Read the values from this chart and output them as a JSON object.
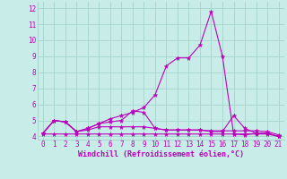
{
  "xlabel": "Windchill (Refroidissement éolien,°C)",
  "background_color": "#c8ede8",
  "grid_color": "#aad8d0",
  "line_color": "#bb00bb",
  "xlim": [
    -0.5,
    21.5
  ],
  "ylim": [
    3.8,
    12.4
  ],
  "yticks": [
    4,
    5,
    6,
    7,
    8,
    9,
    10,
    11,
    12
  ],
  "xticks": [
    0,
    1,
    2,
    3,
    4,
    5,
    6,
    7,
    8,
    9,
    10,
    11,
    12,
    13,
    14,
    15,
    16,
    17,
    18,
    19,
    20,
    21
  ],
  "series": [
    {
      "x": [
        0,
        1,
        2,
        3,
        4,
        5,
        6,
        7,
        8,
        9,
        10,
        11,
        12,
        13,
        14,
        15,
        16,
        17,
        18,
        19,
        20,
        21
      ],
      "y": [
        4.2,
        5.0,
        4.9,
        4.3,
        4.5,
        4.8,
        5.1,
        5.3,
        5.5,
        5.8,
        6.6,
        8.4,
        8.9,
        8.9,
        9.7,
        11.8,
        9.0,
        4.15,
        4.1,
        4.2,
        4.2,
        4.0
      ]
    },
    {
      "x": [
        0,
        1,
        2,
        3,
        4,
        5,
        6,
        7,
        8,
        9,
        10,
        11,
        12,
        13,
        14,
        15,
        16,
        17,
        18,
        19,
        20,
        21
      ],
      "y": [
        4.2,
        5.0,
        4.9,
        4.3,
        4.5,
        4.8,
        4.9,
        5.0,
        5.6,
        5.5,
        4.5,
        4.4,
        4.4,
        4.4,
        4.4,
        4.35,
        4.35,
        4.35,
        4.35,
        4.35,
        4.3,
        4.1
      ]
    },
    {
      "x": [
        0,
        1,
        2,
        3,
        4,
        5,
        6,
        7,
        8,
        9,
        10,
        11,
        12,
        13,
        14,
        15,
        16,
        17,
        18,
        19,
        20,
        21
      ],
      "y": [
        4.2,
        5.0,
        4.9,
        4.3,
        4.4,
        4.6,
        4.6,
        4.6,
        4.6,
        4.6,
        4.5,
        4.4,
        4.4,
        4.4,
        4.4,
        4.3,
        4.3,
        5.3,
        4.5,
        4.2,
        4.2,
        4.0
      ]
    },
    {
      "x": [
        0,
        1,
        2,
        3,
        4,
        5,
        6,
        7,
        8,
        9,
        10,
        11,
        12,
        13,
        14,
        15,
        16,
        17,
        18,
        19,
        20,
        21
      ],
      "y": [
        4.15,
        4.15,
        4.15,
        4.15,
        4.15,
        4.15,
        4.15,
        4.15,
        4.15,
        4.15,
        4.15,
        4.15,
        4.15,
        4.15,
        4.15,
        4.15,
        4.15,
        4.15,
        4.15,
        4.15,
        4.15,
        4.0
      ]
    }
  ]
}
